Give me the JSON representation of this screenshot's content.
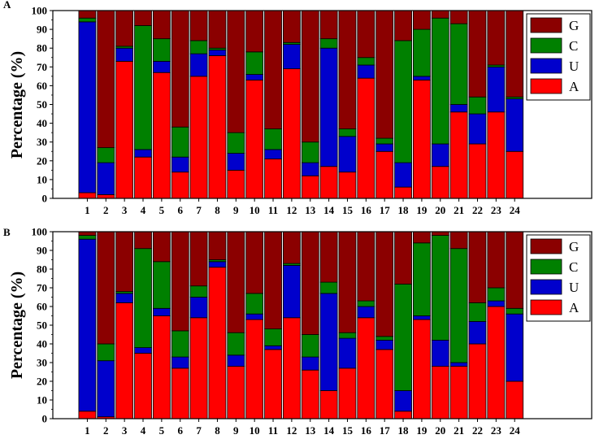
{
  "figure": {
    "colors": {
      "A": "#ff0000",
      "U": "#0000cc",
      "C": "#008000",
      "G": "#8b0000"
    }
  },
  "chart_data": [
    {
      "type": "bar",
      "stacked": true,
      "panel_label": "A",
      "ylabel": "Percentage (%)",
      "xlabel": "",
      "ylim": [
        0,
        100
      ],
      "yticks": [
        0,
        10,
        20,
        30,
        40,
        50,
        60,
        70,
        80,
        90,
        100
      ],
      "categories": [
        "1",
        "2",
        "3",
        "4",
        "5",
        "6",
        "7",
        "8",
        "9",
        "10",
        "11",
        "12",
        "13",
        "14",
        "15",
        "16",
        "17",
        "18",
        "19",
        "20",
        "21",
        "22",
        "23",
        "24"
      ],
      "legend_position": "top-right",
      "legend_order": [
        "G",
        "C",
        "U",
        "A"
      ],
      "series": [
        {
          "name": "A",
          "values": [
            3,
            2,
            73,
            22,
            67,
            14,
            65,
            76,
            15,
            63,
            21,
            69,
            12,
            17,
            14,
            64,
            25,
            6,
            63,
            17,
            46,
            29,
            46,
            25
          ]
        },
        {
          "name": "U",
          "values": [
            91,
            17,
            7,
            4,
            6,
            8,
            12,
            3,
            9,
            3,
            5,
            13,
            7,
            63,
            19,
            7,
            4,
            13,
            2,
            12,
            4,
            16,
            24,
            28
          ]
        },
        {
          "name": "C",
          "values": [
            2,
            8,
            1,
            66,
            12,
            16,
            7,
            1,
            11,
            12,
            11,
            1,
            11,
            5,
            4,
            4,
            3,
            65,
            25,
            67,
            43,
            9,
            1,
            1
          ]
        },
        {
          "name": "G",
          "values": [
            4,
            73,
            19,
            8,
            15,
            62,
            16,
            20,
            65,
            22,
            63,
            17,
            70,
            15,
            63,
            25,
            68,
            16,
            10,
            4,
            7,
            46,
            29,
            46
          ]
        }
      ]
    },
    {
      "type": "bar",
      "stacked": true,
      "panel_label": "B",
      "ylabel": "Percentage (%)",
      "xlabel": "",
      "ylim": [
        0,
        100
      ],
      "yticks": [
        0,
        10,
        20,
        30,
        40,
        50,
        60,
        70,
        80,
        90,
        100
      ],
      "categories": [
        "1",
        "2",
        "3",
        "4",
        "5",
        "6",
        "7",
        "8",
        "9",
        "10",
        "11",
        "12",
        "13",
        "14",
        "15",
        "16",
        "17",
        "18",
        "19",
        "20",
        "21",
        "22",
        "23",
        "24"
      ],
      "legend_position": "top-right",
      "legend_order": [
        "G",
        "C",
        "U",
        "A"
      ],
      "series": [
        {
          "name": "A",
          "values": [
            4,
            1,
            62,
            35,
            55,
            27,
            54,
            81,
            28,
            53,
            37,
            54,
            26,
            15,
            27,
            54,
            37,
            4,
            53,
            28,
            28,
            40,
            60,
            20
          ]
        },
        {
          "name": "U",
          "values": [
            92,
            30,
            5,
            3,
            4,
            6,
            11,
            3,
            6,
            3,
            2,
            28,
            7,
            52,
            16,
            6,
            5,
            11,
            2,
            14,
            2,
            12,
            3,
            36
          ]
        },
        {
          "name": "C",
          "values": [
            2,
            9,
            1,
            53,
            25,
            14,
            6,
            1,
            12,
            11,
            9,
            1,
            12,
            6,
            3,
            3,
            2,
            57,
            39,
            56,
            61,
            10,
            7,
            3
          ]
        },
        {
          "name": "G",
          "values": [
            2,
            60,
            32,
            9,
            16,
            53,
            29,
            15,
            54,
            33,
            52,
            17,
            55,
            27,
            54,
            37,
            56,
            28,
            6,
            2,
            9,
            38,
            30,
            41
          ]
        }
      ]
    }
  ]
}
